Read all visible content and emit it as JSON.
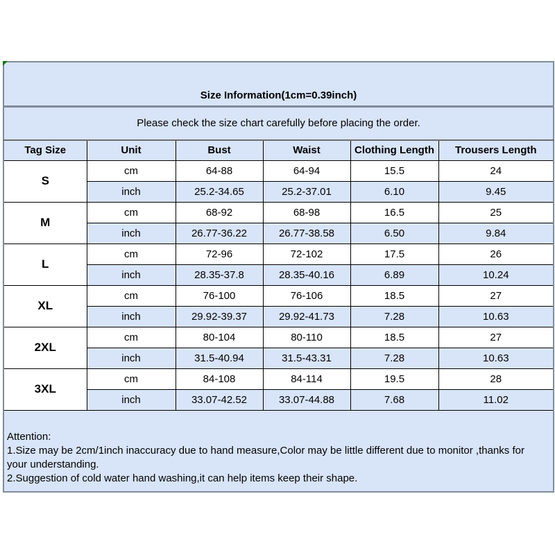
{
  "table": {
    "title": "Size Information(1cm=0.39inch)",
    "subtitle": "Please check the size chart carefully before placing the order.",
    "columns": [
      "Tag Size",
      "Unit",
      "Bust",
      "Waist",
      "Clothing Length",
      "Trousers Length"
    ],
    "units": [
      "cm",
      "inch"
    ],
    "sizes": [
      {
        "tag": "S",
        "cm": [
          "64-88",
          "64-94",
          "15.5",
          "24"
        ],
        "inch": [
          "25.2-34.65",
          "25.2-37.01",
          "6.10",
          "9.45"
        ]
      },
      {
        "tag": "M",
        "cm": [
          "68-92",
          "68-98",
          "16.5",
          "25"
        ],
        "inch": [
          "26.77-36.22",
          "26.77-38.58",
          "6.50",
          "9.84"
        ]
      },
      {
        "tag": "L",
        "cm": [
          "72-96",
          "72-102",
          "17.5",
          "26"
        ],
        "inch": [
          "28.35-37.8",
          "28.35-40.16",
          "6.89",
          "10.24"
        ]
      },
      {
        "tag": "XL",
        "cm": [
          "76-100",
          "76-106",
          "18.5",
          "27"
        ],
        "inch": [
          "29.92-39.37",
          "29.92-41.73",
          "7.28",
          "10.63"
        ]
      },
      {
        "tag": "2XL",
        "cm": [
          "80-104",
          "80-110",
          "18.5",
          "27"
        ],
        "inch": [
          "31.5-40.94",
          "31.5-43.31",
          "7.28",
          "10.63"
        ]
      },
      {
        "tag": "3XL",
        "cm": [
          "84-108",
          "84-114",
          "19.5",
          "28"
        ],
        "inch": [
          "33.07-42.52",
          "33.07-44.88",
          "7.68",
          "11.02"
        ]
      }
    ],
    "attention": {
      "heading": "Attention:",
      "lines": [
        "1.Size may be 2cm/1inch inaccuracy due to hand measure,Color may be little different due to monitor ,thanks for your understanding.",
        "2.Suggestion of cold water hand washing,it can help items keep their shape."
      ]
    },
    "colors": {
      "row_highlight": "#d8e4f8",
      "row_plain": "#ffffff",
      "border_inner": "#000000",
      "border_outer": "#7f8c99",
      "corner_marker": "#0a7a0a",
      "text": "#000000"
    }
  }
}
